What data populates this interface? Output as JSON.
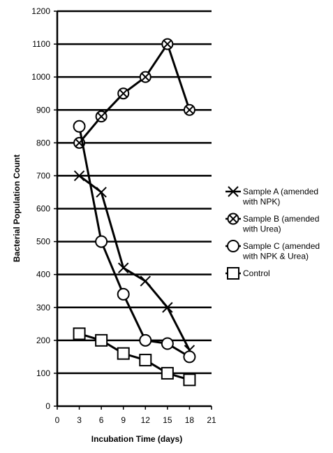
{
  "chart_data": {
    "type": "line",
    "xlabel": "Incubation Time (days)",
    "ylabel": "Bacterial Population Count",
    "xlim": [
      0,
      21
    ],
    "ylim": [
      0,
      1200
    ],
    "x_ticks": [
      "0",
      "3",
      "6",
      "9",
      "12",
      "15",
      "18",
      "21"
    ],
    "y_ticks": [
      "0",
      "100",
      "200",
      "300",
      "400",
      "500",
      "600",
      "700",
      "800",
      "900",
      "1000",
      "1100",
      "1200"
    ],
    "x": [
      3,
      6,
      9,
      12,
      15,
      18
    ],
    "grid": "horizontal major gridlines",
    "legend_position": "right",
    "series": [
      {
        "name": "Sample A (amended with NPK)",
        "name_lines": [
          "Sample A (amended",
          "with NPK)"
        ],
        "marker": "x",
        "values": [
          700,
          650,
          420,
          380,
          300,
          170
        ]
      },
      {
        "name": "Sample B (amended with Urea)",
        "name_lines": [
          "Sample B (amended",
          "with Urea)"
        ],
        "marker": "circle-x",
        "values": [
          800,
          880,
          950,
          1000,
          1100,
          900
        ]
      },
      {
        "name": "Sample C (amended with NPK & Urea)",
        "name_lines": [
          "Sample C (amended",
          "with NPK & Urea)"
        ],
        "marker": "circle",
        "values": [
          850,
          500,
          340,
          200,
          190,
          150
        ]
      },
      {
        "name": "Control",
        "name_lines": [
          "Control"
        ],
        "marker": "square",
        "values": [
          220,
          200,
          160,
          140,
          100,
          80
        ]
      }
    ],
    "colors": {
      "line": "#000000",
      "background": "#ffffff"
    }
  }
}
